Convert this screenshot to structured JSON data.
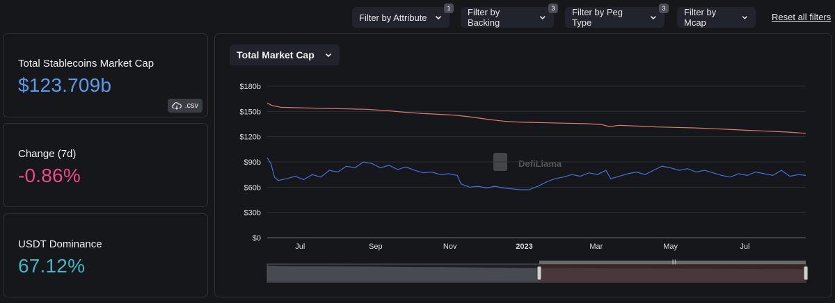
{
  "filters": [
    {
      "label": "Filter by Attribute",
      "badge": "1"
    },
    {
      "label": "Filter by Backing",
      "badge": "3"
    },
    {
      "label": "Filter by Peg Type",
      "badge": "3"
    },
    {
      "label": "Filter by Mcap",
      "badge": ""
    }
  ],
  "reset_label": "Reset all filters",
  "cards": {
    "market_cap": {
      "label": "Total Stablecoins Market Cap",
      "value": "$123.709b",
      "csv_label": ".csv"
    },
    "change": {
      "label": "Change (7d)",
      "value": "-0.86%"
    },
    "dominance": {
      "label": "USDT Dominance",
      "value": "67.12%"
    }
  },
  "chart_selector": {
    "label": "Total Market Cap"
  },
  "watermark": "DefiLlama",
  "colors": {
    "market_cap_value": "#5b9be6",
    "change_value": "#e94b8a",
    "dominance_value": "#3fb6c0",
    "series_total": "#e07a6f",
    "series_second": "#4a6fd8"
  },
  "chart_data": {
    "type": "line",
    "y_ticks": [
      "$180b",
      "$150b",
      "$120b",
      "$90b",
      "$60b",
      "$30b",
      "$0"
    ],
    "x_ticks": [
      "Jul",
      "Sep",
      "Nov",
      "2023",
      "Mar",
      "May",
      "Jul"
    ],
    "ylim": [
      0,
      180
    ],
    "grid": true,
    "x_range": [
      "2022-06-04",
      "2023-08-20"
    ],
    "series": [
      {
        "values": [
          [
            "2022-06-04",
            160
          ],
          [
            "2022-06-08",
            157
          ],
          [
            "2022-06-15",
            155
          ],
          [
            "2022-06-25",
            154.5
          ],
          [
            "2022-07-10",
            154
          ],
          [
            "2022-07-25",
            153.5
          ],
          [
            "2022-08-10",
            153
          ],
          [
            "2022-08-25",
            152.5
          ],
          [
            "2022-09-10",
            151
          ],
          [
            "2022-09-25",
            149
          ],
          [
            "2022-10-10",
            147.5
          ],
          [
            "2022-10-25",
            146.5
          ],
          [
            "2022-11-05",
            145.5
          ],
          [
            "2022-11-15",
            144
          ],
          [
            "2022-11-25",
            142
          ],
          [
            "2022-12-05",
            140
          ],
          [
            "2022-12-15",
            138.5
          ],
          [
            "2022-12-25",
            137.5
          ],
          [
            "2023-01-05",
            137
          ],
          [
            "2023-01-20",
            136.5
          ],
          [
            "2023-02-05",
            136
          ],
          [
            "2023-02-20",
            135.5
          ],
          [
            "2023-03-05",
            134.5
          ],
          [
            "2023-03-12",
            132
          ],
          [
            "2023-03-20",
            133.5
          ],
          [
            "2023-04-05",
            132.5
          ],
          [
            "2023-04-20",
            131.5
          ],
          [
            "2023-05-05",
            131
          ],
          [
            "2023-05-20",
            130.5
          ],
          [
            "2023-06-05",
            129.5
          ],
          [
            "2023-06-20",
            128.5
          ],
          [
            "2023-07-05",
            127.5
          ],
          [
            "2023-07-20",
            126.5
          ],
          [
            "2023-08-05",
            125.5
          ],
          [
            "2023-08-15",
            124.5
          ],
          [
            "2023-08-20",
            123.7
          ]
        ]
      },
      {
        "values": [
          [
            "2022-06-04",
            95
          ],
          [
            "2022-06-07",
            88
          ],
          [
            "2022-06-10",
            72
          ],
          [
            "2022-06-13",
            68
          ],
          [
            "2022-06-20",
            70
          ],
          [
            "2022-06-27",
            73
          ],
          [
            "2022-07-04",
            69
          ],
          [
            "2022-07-11",
            75
          ],
          [
            "2022-07-18",
            72
          ],
          [
            "2022-07-25",
            80
          ],
          [
            "2022-08-01",
            78
          ],
          [
            "2022-08-08",
            85
          ],
          [
            "2022-08-15",
            83
          ],
          [
            "2022-08-22",
            90
          ],
          [
            "2022-08-29",
            88
          ],
          [
            "2022-09-05",
            83
          ],
          [
            "2022-09-12",
            86
          ],
          [
            "2022-09-19",
            81
          ],
          [
            "2022-09-26",
            84
          ],
          [
            "2022-10-03",
            80
          ],
          [
            "2022-10-10",
            77
          ],
          [
            "2022-10-17",
            78
          ],
          [
            "2022-10-24",
            75
          ],
          [
            "2022-10-31",
            76
          ],
          [
            "2022-11-07",
            74
          ],
          [
            "2022-11-10",
            64
          ],
          [
            "2022-11-17",
            60
          ],
          [
            "2022-11-24",
            61
          ],
          [
            "2022-12-01",
            59
          ],
          [
            "2022-12-08",
            61
          ],
          [
            "2022-12-15",
            59
          ],
          [
            "2022-12-22",
            58
          ],
          [
            "2022-12-29",
            57
          ],
          [
            "2023-01-05",
            57
          ],
          [
            "2023-01-12",
            61
          ],
          [
            "2023-01-19",
            66
          ],
          [
            "2023-01-26",
            70
          ],
          [
            "2023-02-02",
            72
          ],
          [
            "2023-02-09",
            75
          ],
          [
            "2023-02-16",
            73
          ],
          [
            "2023-02-23",
            77
          ],
          [
            "2023-03-02",
            75
          ],
          [
            "2023-03-09",
            80
          ],
          [
            "2023-03-13",
            70
          ],
          [
            "2023-03-20",
            73
          ],
          [
            "2023-03-27",
            76
          ],
          [
            "2023-04-03",
            78
          ],
          [
            "2023-04-10",
            75
          ],
          [
            "2023-04-17",
            80
          ],
          [
            "2023-04-24",
            85
          ],
          [
            "2023-05-01",
            83
          ],
          [
            "2023-05-08",
            80
          ],
          [
            "2023-05-15",
            82
          ],
          [
            "2023-05-22",
            78
          ],
          [
            "2023-05-29",
            80
          ],
          [
            "2023-06-05",
            77
          ],
          [
            "2023-06-12",
            74
          ],
          [
            "2023-06-19",
            72
          ],
          [
            "2023-06-26",
            76
          ],
          [
            "2023-07-03",
            74
          ],
          [
            "2023-07-10",
            78
          ],
          [
            "2023-07-17",
            76
          ],
          [
            "2023-07-24",
            74
          ],
          [
            "2023-07-31",
            80
          ],
          [
            "2023-08-07",
            73
          ],
          [
            "2023-08-14",
            75
          ],
          [
            "2023-08-20",
            74
          ]
        ]
      }
    ]
  }
}
